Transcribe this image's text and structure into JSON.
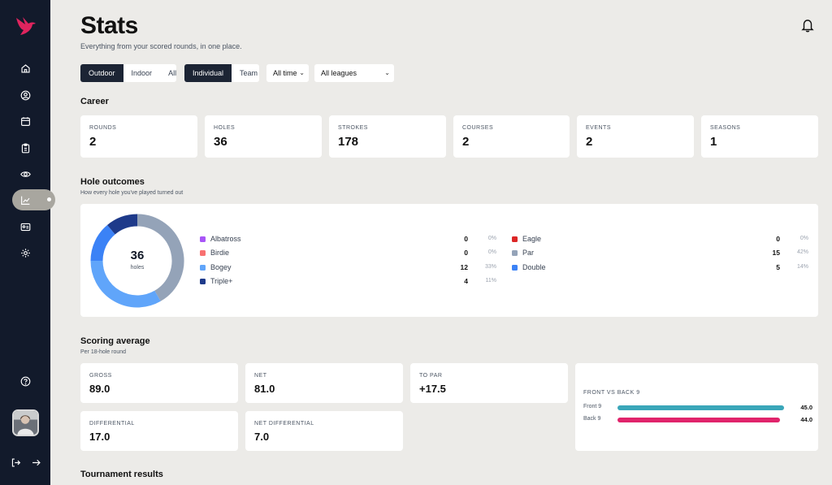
{
  "colors": {
    "sidebar": "#121a2b",
    "accent": "#e0245e",
    "dark_button": "#1c2434"
  },
  "sidebar": {
    "logo": "bird-logo",
    "items": [
      {
        "icon": "home-icon",
        "active": false
      },
      {
        "icon": "user-circle-icon",
        "active": false
      },
      {
        "icon": "calendar-icon",
        "active": false
      },
      {
        "icon": "clipboard-icon",
        "active": false
      },
      {
        "icon": "eye-icon",
        "active": false
      },
      {
        "icon": "chart-line-icon",
        "active": true
      },
      {
        "icon": "id-card-icon",
        "active": false
      },
      {
        "icon": "settings-icon",
        "active": false
      }
    ],
    "help_icon": "help-icon",
    "bottom_icons": [
      "logout-icon",
      "arrow-right-icon"
    ]
  },
  "header": {
    "title": "Stats",
    "subtitle": "Everything from your scored rounds, in one place.",
    "bell_icon": "bell-icon"
  },
  "filters": {
    "venue": [
      "Outdoor",
      "Indoor",
      "All"
    ],
    "venue_selected": "Outdoor",
    "mode": [
      "Individual",
      "Team"
    ],
    "mode_selected": "Individual",
    "time_select": "All time",
    "league_select": "All leagues"
  },
  "career": {
    "title": "Career",
    "stats": [
      {
        "label": "ROUNDS",
        "value": "2"
      },
      {
        "label": "HOLES",
        "value": "36"
      },
      {
        "label": "STROKES",
        "value": "178"
      },
      {
        "label": "COURSES",
        "value": "2"
      },
      {
        "label": "EVENTS",
        "value": "2"
      },
      {
        "label": "SEASONS",
        "value": "1"
      }
    ]
  },
  "outcomes": {
    "title": "Hole outcomes",
    "subtitle": "How every hole you've played turned out",
    "total": "36",
    "total_label": "holes",
    "items": [
      {
        "name": "Albatross",
        "count": "0",
        "pct": "0%",
        "color": "#a855f7",
        "value": 0
      },
      {
        "name": "Birdie",
        "count": "0",
        "pct": "0%",
        "color": "#f87171",
        "value": 0
      },
      {
        "name": "Bogey",
        "count": "12",
        "pct": "33%",
        "color": "#60a5fa",
        "value": 12
      },
      {
        "name": "Triple+",
        "count": "4",
        "pct": "11%",
        "color": "#1e3a8a",
        "value": 4
      },
      {
        "name": "Eagle",
        "count": "0",
        "pct": "0%",
        "color": "#dc2626",
        "value": 0
      },
      {
        "name": "Par",
        "count": "15",
        "pct": "42%",
        "color": "#94a3b8",
        "value": 15
      },
      {
        "name": "Double",
        "count": "5",
        "pct": "14%",
        "color": "#3b82f6",
        "value": 5
      }
    ]
  },
  "scoring": {
    "title": "Scoring average",
    "subtitle": "Per 18-hole round",
    "stats": [
      {
        "label": "GROSS",
        "value": "89.0"
      },
      {
        "label": "NET",
        "value": "81.0"
      },
      {
        "label": "TO PAR",
        "value": "+17.5"
      },
      {
        "label": "DIFFERENTIAL",
        "value": "17.0"
      },
      {
        "label": "NET DIFFERENTIAL",
        "value": "7.0"
      }
    ],
    "front_back": {
      "title": "FRONT VS BACK 9",
      "rows": [
        {
          "label": "Front 9",
          "value": "45.0",
          "amount": 45.0,
          "color": "#3aa6b9"
        },
        {
          "label": "Back 9",
          "value": "44.0",
          "amount": 44.0,
          "color": "#e0246b"
        }
      ]
    }
  },
  "tournament": {
    "title": "Tournament results"
  }
}
